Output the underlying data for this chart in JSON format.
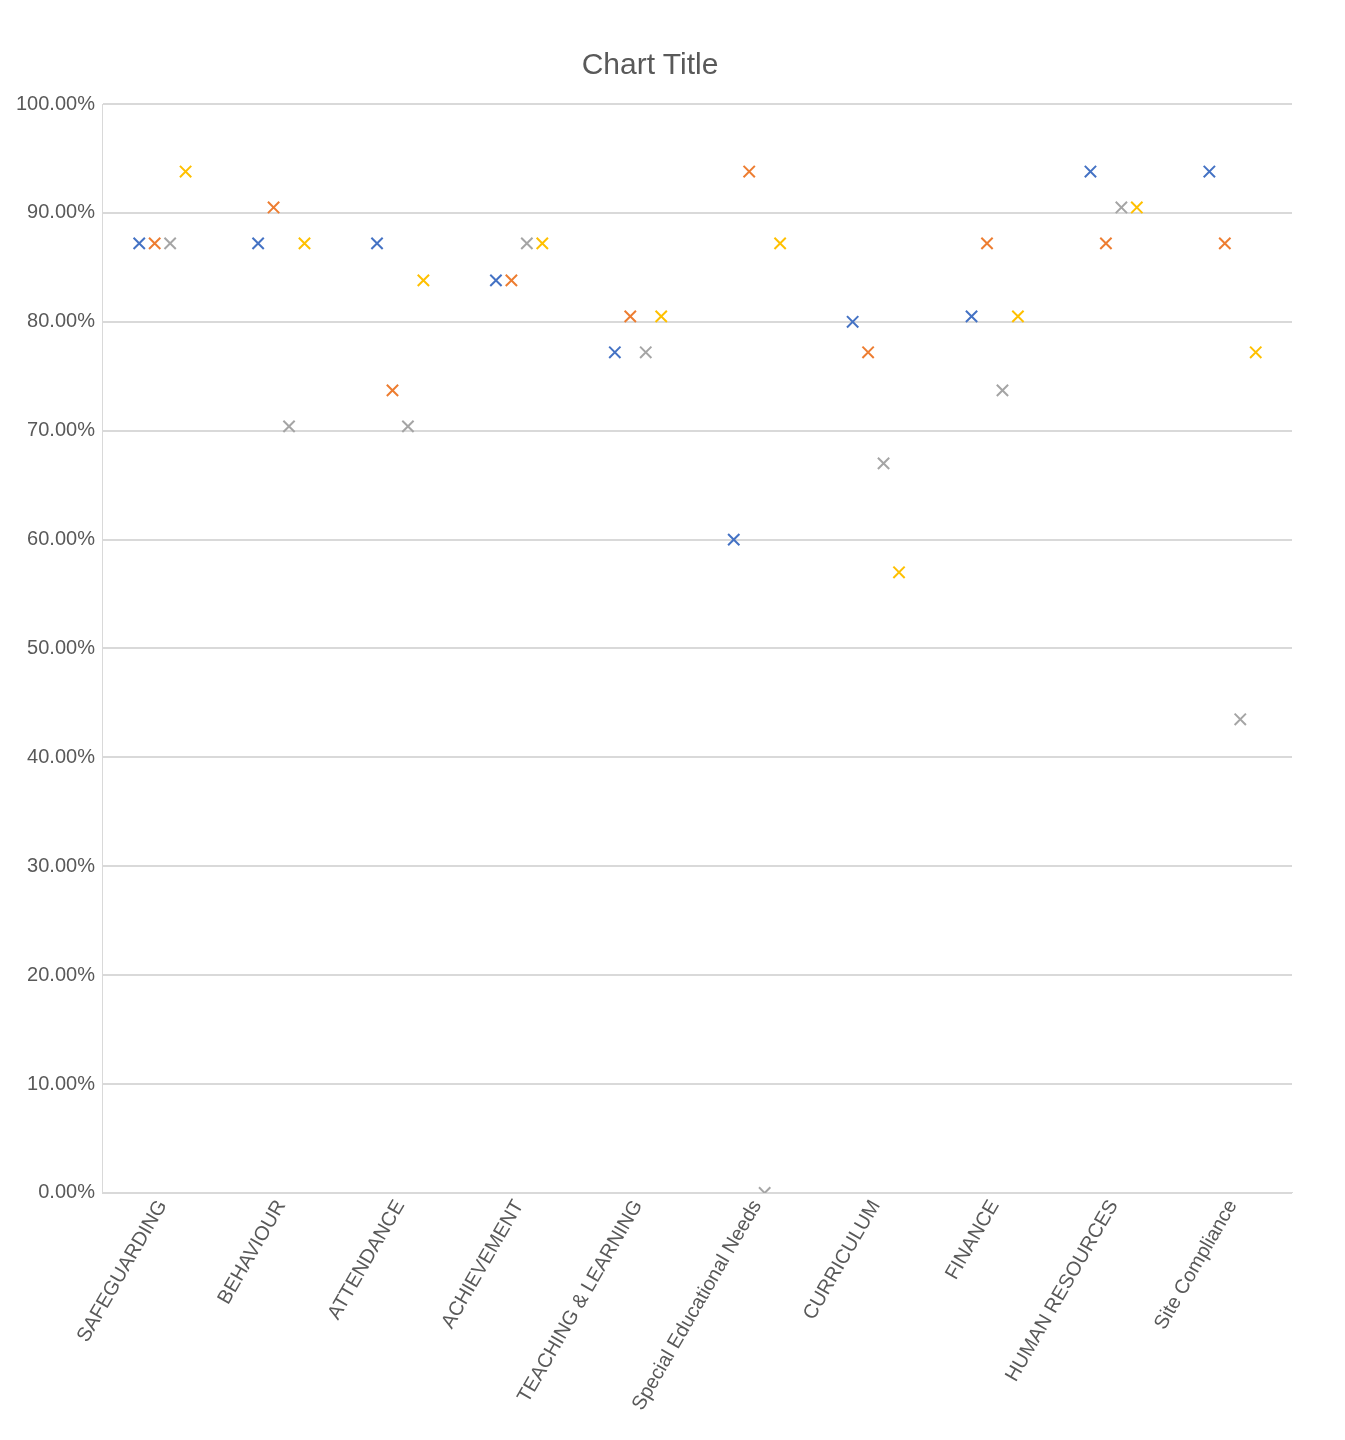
{
  "chart_data": {
    "type": "scatter",
    "title": "Chart Title",
    "categories": [
      "SAFEGUARDING",
      "BEHAVIOUR",
      "ATTENDANCE",
      "ACHIEVEMENT",
      "TEACHING & LEARNING",
      "Special Educational Needs",
      "CURRICULUM",
      "FINANCE",
      "HUMAN RESOURCES",
      "Site Compliance"
    ],
    "series": [
      {
        "color": "#4472c4",
        "values": [
          87.2,
          87.2,
          87.2,
          83.8,
          77.2,
          60.0,
          80.0,
          80.5,
          93.8,
          93.8
        ]
      },
      {
        "color": "#ed7d31",
        "values": [
          87.2,
          90.5,
          73.7,
          83.8,
          80.5,
          93.8,
          77.2,
          87.2,
          87.2,
          87.2
        ]
      },
      {
        "color": "#a5a5a5",
        "values": [
          87.2,
          70.4,
          70.4,
          87.2,
          77.2,
          0,
          67.0,
          73.7,
          90.5,
          43.5
        ]
      },
      {
        "color": "#ffc000",
        "values": [
          93.8,
          87.2,
          83.8,
          87.2,
          80.5,
          87.2,
          57.0,
          80.5,
          90.5,
          77.2
        ]
      }
    ],
    "ylim": [
      0,
      100
    ],
    "yticks": [
      {
        "value": 0,
        "label": "0.00%"
      },
      {
        "value": 10,
        "label": "10.00%"
      },
      {
        "value": 20,
        "label": "20.00%"
      },
      {
        "value": 30,
        "label": "30.00%"
      },
      {
        "value": 40,
        "label": "40.00%"
      },
      {
        "value": 50,
        "label": "50.00%"
      },
      {
        "value": 60,
        "label": "60.00%"
      },
      {
        "value": 70,
        "label": "70.00%"
      },
      {
        "value": 80,
        "label": "80.00%"
      },
      {
        "value": 90,
        "label": "90.00%"
      },
      {
        "value": 100,
        "label": "100.00%"
      }
    ],
    "grid": "y",
    "legend": false,
    "marker": "cross"
  }
}
